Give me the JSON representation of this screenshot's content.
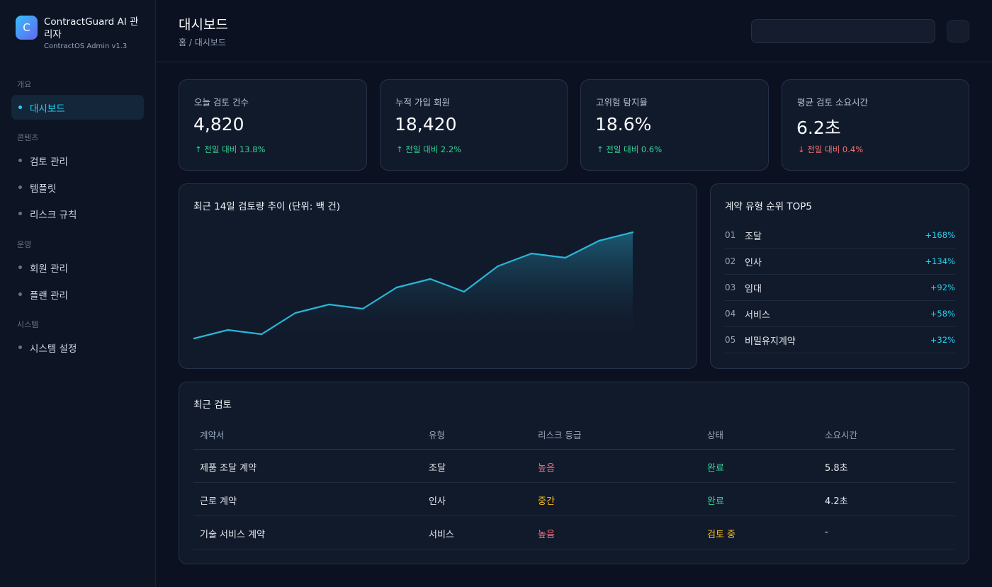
{
  "sidebar": {
    "logo_letter": "C",
    "app_name": "ContractGuard AI 관리자",
    "version": "ContractOS Admin v1.3",
    "groups": [
      {
        "label": "개요",
        "items": [
          {
            "label": "대시보드",
            "active": true
          }
        ]
      },
      {
        "label": "콘텐츠",
        "items": [
          {
            "label": "검토 관리"
          },
          {
            "label": "템플릿"
          },
          {
            "label": "리스크 규칙"
          }
        ]
      },
      {
        "label": "운영",
        "items": [
          {
            "label": "회원 관리"
          },
          {
            "label": "플랜 관리"
          }
        ]
      },
      {
        "label": "시스템",
        "items": [
          {
            "label": "시스템 설정"
          }
        ]
      }
    ]
  },
  "header": {
    "title": "대시보드",
    "breadcrumb": "홈 / 대시보드",
    "search_placeholder": ""
  },
  "stats": [
    {
      "label": "오늘 검토 건수",
      "value": "4,820",
      "arrow": "↑",
      "delta": "전일 대비 13.8%",
      "trend": "up"
    },
    {
      "label": "누적 가입 회원",
      "value": "18,420",
      "arrow": "↑",
      "delta": "전일 대비 2.2%",
      "trend": "up"
    },
    {
      "label": "고위험 탐지율",
      "value": "18.6%",
      "arrow": "↑",
      "delta": "전일 대비 0.6%",
      "trend": "up"
    },
    {
      "label": "평균 검토 소요시간",
      "value": "6.2초",
      "arrow": "↓",
      "delta": "전일 대비 0.4%",
      "trend": "down"
    }
  ],
  "trend_card": {
    "title": "최근 14일 검토량 추이 (단위: 백 건)"
  },
  "chart_data": {
    "type": "area",
    "title": "최근 14일 검토량 추이 (단위: 백 건)",
    "x": [
      1,
      2,
      3,
      4,
      5,
      6,
      7,
      8,
      9,
      10,
      11,
      12,
      13,
      14
    ],
    "values": [
      38,
      40,
      39,
      44,
      46,
      45,
      50,
      52,
      49,
      55,
      58,
      57,
      61,
      63
    ],
    "ylim": [
      36,
      65
    ],
    "grid": false,
    "line_color": "#29b6d6"
  },
  "ranking": {
    "title": "계약 유형 순위 TOP5",
    "items": [
      {
        "no": "01",
        "name": "조달",
        "value": "+168%"
      },
      {
        "no": "02",
        "name": "인사",
        "value": "+134%"
      },
      {
        "no": "03",
        "name": "임대",
        "value": "+92%"
      },
      {
        "no": "04",
        "name": "서비스",
        "value": "+58%"
      },
      {
        "no": "05",
        "name": "비밀유지계약",
        "value": "+32%"
      }
    ]
  },
  "recent": {
    "title": "최근 검토",
    "columns": [
      "계약서",
      "유형",
      "리스크 등급",
      "상태",
      "소요시간"
    ],
    "rows": [
      {
        "doc": "제품 조달 계약",
        "type": "조달",
        "risk": "높음",
        "risk_level": "high",
        "status": "완료",
        "status_kind": "done",
        "time": "5.8초"
      },
      {
        "doc": "근로 계약",
        "type": "인사",
        "risk": "중간",
        "risk_level": "mid",
        "status": "완료",
        "status_kind": "done",
        "time": "4.2초"
      },
      {
        "doc": "기술 서비스 계약",
        "type": "서비스",
        "risk": "높음",
        "risk_level": "high",
        "status": "검토 중",
        "status_kind": "prog",
        "time": "-"
      }
    ]
  }
}
